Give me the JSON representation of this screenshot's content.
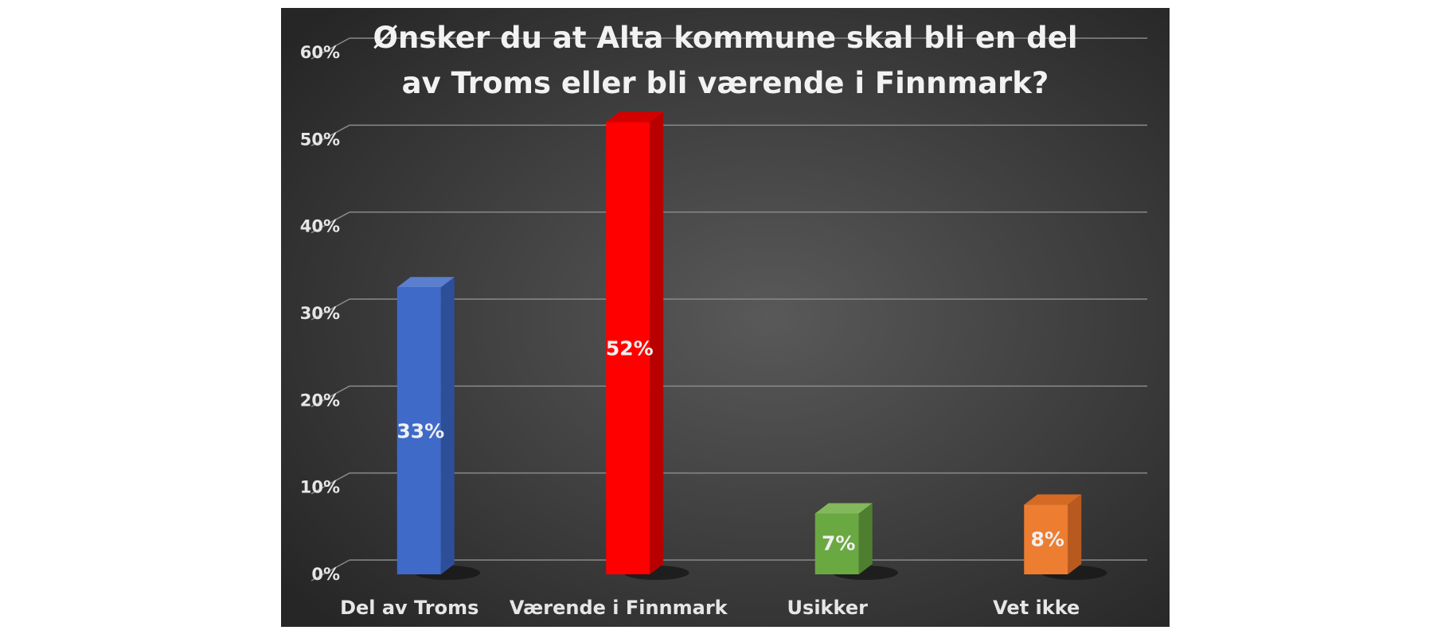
{
  "chart_data": {
    "type": "bar",
    "title_lines": [
      "Ønsker du at Alta kommune skal bli en del",
      "av Troms eller bli værende i Finnmark?"
    ],
    "categories": [
      "Del av Troms",
      "Værende i Finnmark",
      "Usikker",
      "Vet ikke"
    ],
    "values": [
      33,
      52,
      7,
      8
    ],
    "value_labels": [
      "33%",
      "52%",
      "7%",
      "8%"
    ],
    "y_ticks": [
      "0%",
      "10%",
      "20%",
      "30%",
      "40%",
      "50%",
      "60%"
    ],
    "ylim": [
      0,
      60
    ],
    "grid": true,
    "legend": false,
    "style": "3d-column",
    "colors": {
      "bars": [
        "#3f6ac8",
        "#ff0000",
        "#6aa842",
        "#ed7d31"
      ],
      "bars_side": [
        "#2d4f9a",
        "#b80000",
        "#4d7f2e",
        "#b85a1f"
      ],
      "bars_top": [
        "#5b7fcf",
        "#d40000",
        "#83b85c",
        "#d46a24"
      ],
      "background": "#3a3a3a",
      "grid": "#8a8a8a",
      "text": "#e6e6e6"
    }
  }
}
